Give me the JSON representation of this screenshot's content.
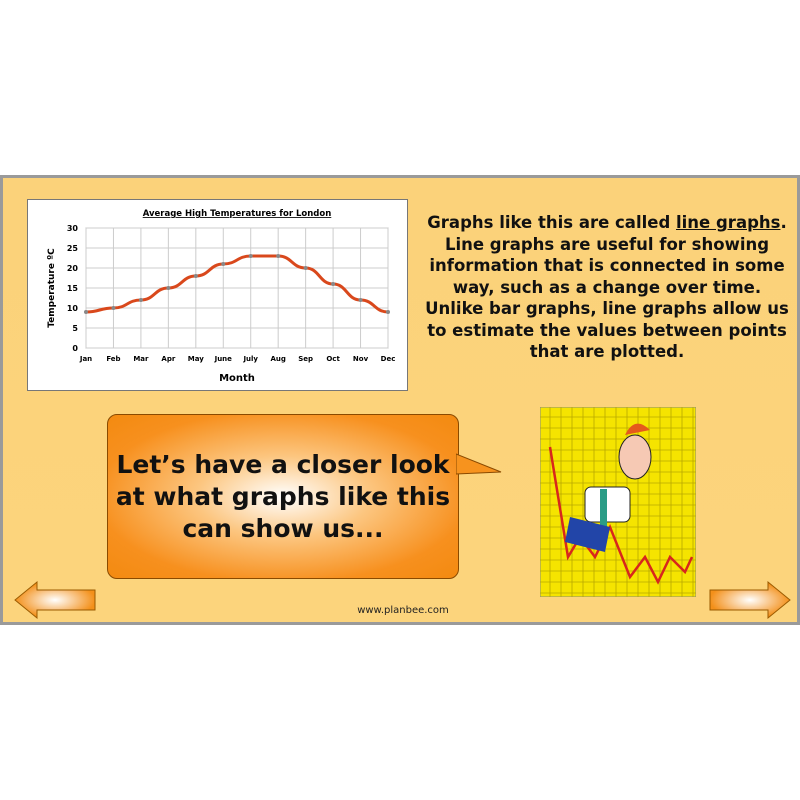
{
  "chart_data": {
    "type": "line",
    "title": "Average High Temperatures for London",
    "xlabel": "Month",
    "ylabel": "Temperature ºC",
    "categories": [
      "Jan",
      "Feb",
      "Mar",
      "Apr",
      "May",
      "June",
      "July",
      "Aug",
      "Sep",
      "Oct",
      "Nov",
      "Dec"
    ],
    "values": [
      9,
      10,
      12,
      15,
      18,
      21,
      23,
      23,
      20,
      16,
      12,
      9
    ],
    "yticks": [
      0,
      5,
      10,
      15,
      20,
      25,
      30
    ],
    "ylim": [
      0,
      30
    ],
    "grid": true,
    "line_color": "#d9481c"
  },
  "text": {
    "p1": "Graphs like this are called ",
    "p1_link": "line graphs",
    "p1_end": ". Line graphs are useful for showing information that is connected in some way, such as a change over time. Unlike bar graphs, line graphs allow us to estimate the values between points that are plotted."
  },
  "bubble": {
    "text": "Let’s have a closer look at what graphs like this can show us..."
  },
  "footer": {
    "url": "www.planbee.com"
  },
  "nav": {
    "prev": "arrow-left-icon",
    "next": "arrow-right-icon"
  }
}
